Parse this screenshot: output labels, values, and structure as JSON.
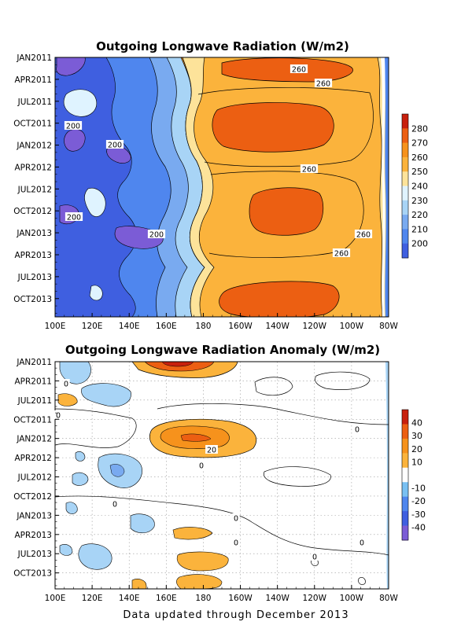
{
  "footer": "Data updated through December 2013",
  "chart_data": [
    {
      "type": "heatmap",
      "title": "Outgoing Longwave Radiation (W/m2)",
      "x_ticks": [
        "100E",
        "120E",
        "140E",
        "160E",
        "180",
        "160W",
        "140W",
        "120W",
        "100W",
        "80W"
      ],
      "x_values": [
        100,
        120,
        140,
        160,
        180,
        200,
        220,
        240,
        260,
        280
      ],
      "y_ticks": [
        "JAN2011",
        "APR2011",
        "JUL2011",
        "OCT2011",
        "JAN2012",
        "APR2012",
        "JUL2012",
        "OCT2012",
        "JAN2013",
        "APR2013",
        "JUL2013",
        "OCT2013"
      ],
      "y_range": [
        "JAN2011",
        "DEC2013"
      ],
      "colorbar": {
        "labels": [
          "200",
          "210",
          "220",
          "230",
          "240",
          "250",
          "260",
          "270",
          "280"
        ],
        "levels": [
          190,
          200,
          210,
          220,
          230,
          240,
          250,
          260,
          270,
          280,
          290
        ],
        "colors": [
          "#7b5cd6",
          "#3f5fe0",
          "#4f86ee",
          "#79aaf0",
          "#a8d4f6",
          "#dff3ff",
          "#fde39a",
          "#fbb33c",
          "#f6921c",
          "#ec5f12",
          "#c8200d"
        ]
      },
      "contour_labels": [
        "260",
        "260",
        "200",
        "200",
        "260",
        "200",
        "200",
        "260",
        "260"
      ],
      "grid": false,
      "legend": "right"
    },
    {
      "type": "heatmap",
      "title": "Outgoing Longwave Radiation Anomaly (W/m2)",
      "x_ticks": [
        "100E",
        "120E",
        "140E",
        "160E",
        "180",
        "160W",
        "140W",
        "120W",
        "100W",
        "80W"
      ],
      "x_values": [
        100,
        120,
        140,
        160,
        180,
        200,
        220,
        240,
        260,
        280
      ],
      "y_ticks": [
        "JAN2011",
        "APR2011",
        "JUL2011",
        "OCT2011",
        "JAN2012",
        "APR2012",
        "JUL2012",
        "OCT2012",
        "JAN2013",
        "APR2013",
        "JUL2013",
        "OCT2013"
      ],
      "y_range": [
        "JAN2011",
        "DEC2013"
      ],
      "colorbar": {
        "labels": [
          "40",
          "30",
          "20",
          "10",
          "-10",
          "-20",
          "-30",
          "-40"
        ],
        "levels": [
          50,
          40,
          30,
          20,
          10,
          -10,
          -20,
          -30,
          -40,
          -50
        ],
        "colors": [
          "#c8200d",
          "#ec5f12",
          "#f6921c",
          "#fbb33c",
          "#ffffff",
          "#79c0f2",
          "#4f86ee",
          "#3f5fe0",
          "#7b5cd6"
        ]
      },
      "contour_labels": [
        "0",
        "0",
        "0",
        "0",
        "20",
        "0",
        "0",
        "0",
        "0",
        "0"
      ],
      "grid": true,
      "legend": "right"
    }
  ]
}
